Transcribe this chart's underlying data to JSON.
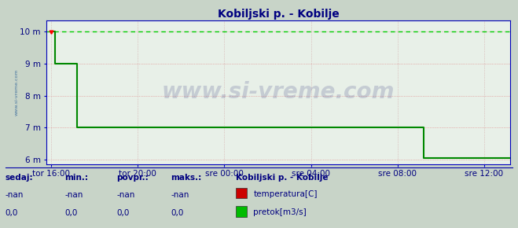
{
  "title": "Kobiljski p. - Kobilje",
  "title_color": "#000080",
  "title_fontsize": 10,
  "plot_bg_color": "#e8f0e8",
  "outer_bg_color": "#c8d4c8",
  "grid_color_h": "#e08080",
  "grid_color_v": "#d0a0a0",
  "axis_color": "#0000bb",
  "tick_color": "#000080",
  "watermark": "www.si-vreme.com",
  "watermark_color": "#000060",
  "watermark_alpha": 0.15,
  "ylim": [
    5.85,
    10.35
  ],
  "yticks": [
    6,
    7,
    8,
    9,
    10
  ],
  "ytick_labels": [
    "6 m",
    "7 m",
    "8 m",
    "9 m",
    "10 m"
  ],
  "xtick_labels": [
    "tor 16:00",
    "tor 20:00",
    "sre 00:00",
    "sre 04:00",
    "sre 08:00",
    "sre 12:00"
  ],
  "xtick_positions": [
    0,
    4,
    8,
    12,
    16,
    20
  ],
  "xlim": [
    -0.2,
    21.2
  ],
  "green_x": [
    0.0,
    0.2,
    0.2,
    1.2,
    1.2,
    8.0,
    8.0,
    17.2,
    17.2,
    21.2
  ],
  "green_y": [
    10.0,
    10.0,
    9.0,
    9.0,
    7.0,
    7.0,
    7.0,
    7.0,
    6.05,
    6.05
  ],
  "dashed_line_y": 10.0,
  "dashed_color": "#00cc00",
  "solid_line_color": "#008800",
  "line_width": 1.5,
  "left_text_color": "#336699",
  "bottom_headers": [
    "sedaj:",
    "min.:",
    "povpr.:",
    "maks.:"
  ],
  "bottom_row1": [
    "-nan",
    "-nan",
    "-nan",
    "-nan"
  ],
  "bottom_row2": [
    "0,0",
    "0,0",
    "0,0",
    "0,0"
  ],
  "legend_title": "Kobiljski p. - Kobilje",
  "legend_items": [
    {
      "label": "temperatura[C]",
      "color": "#cc0000"
    },
    {
      "label": "pretok[m3/s]",
      "color": "#00bb00"
    }
  ],
  "watermark_fontsize": 20,
  "label_fontsize": 7.5
}
